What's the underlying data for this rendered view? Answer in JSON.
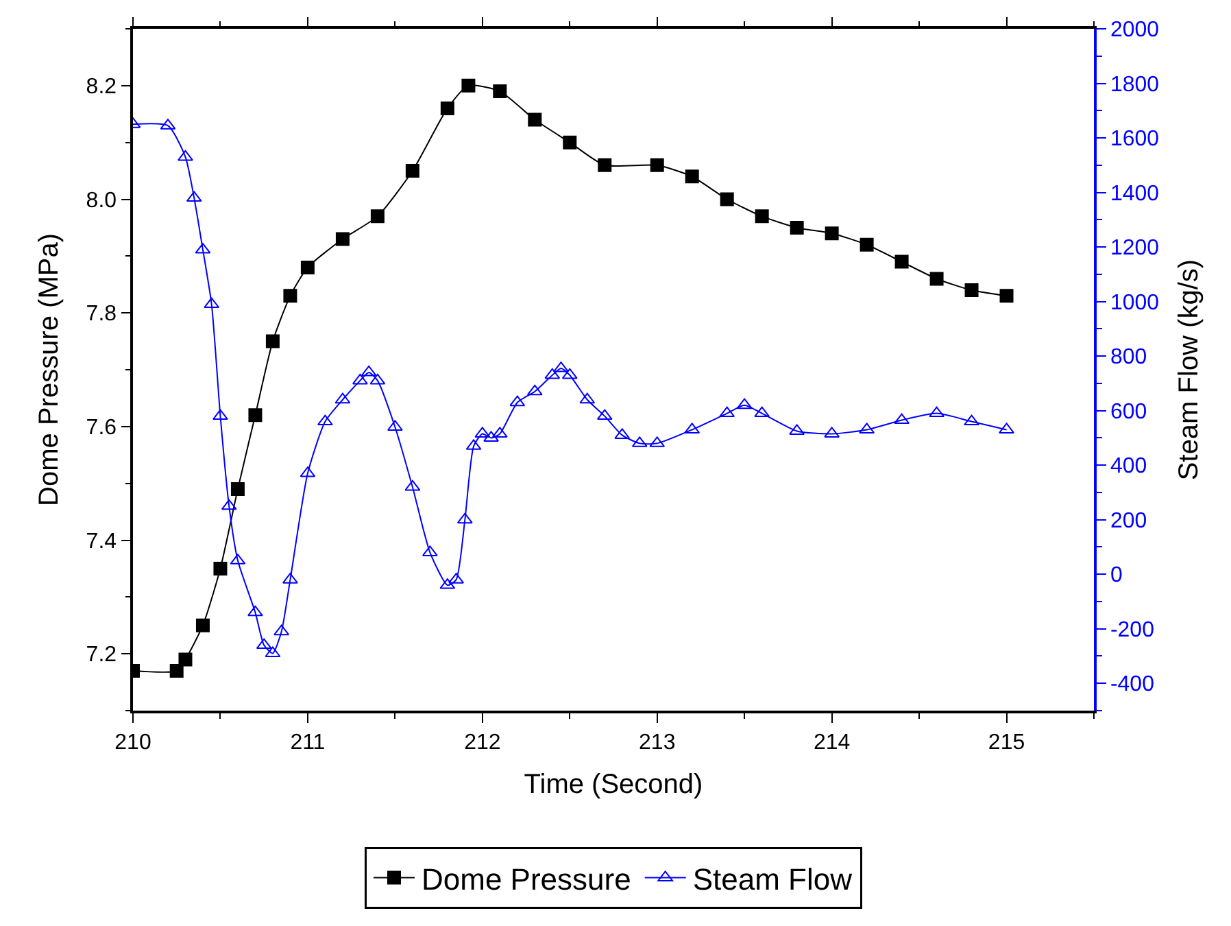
{
  "chart_data": {
    "type": "line",
    "xlabel": "Time (Second)",
    "ylabel": "Dome Pressure (MPa)",
    "y2label": "Steam Flow (kg/s)",
    "series": [
      {
        "name": "Dome Pressure",
        "color": "#000000",
        "marker": "square",
        "x": [
          210.0,
          210.25,
          210.3,
          210.4,
          210.5,
          210.6,
          210.7,
          210.8,
          210.9,
          211.0,
          211.2,
          211.4,
          211.6,
          211.8,
          211.92,
          212.1,
          212.3,
          212.5,
          212.7,
          213.0,
          213.2,
          213.4,
          213.6,
          213.8,
          214.0,
          214.2,
          214.4,
          214.6,
          214.8,
          215.0
        ],
        "values": [
          7.17,
          7.17,
          7.19,
          7.25,
          7.35,
          7.49,
          7.62,
          7.75,
          7.83,
          7.88,
          7.93,
          7.97,
          8.05,
          8.16,
          8.2,
          8.19,
          8.14,
          8.1,
          8.06,
          8.06,
          8.04,
          8.0,
          7.97,
          7.95,
          7.94,
          7.92,
          7.89,
          7.86,
          7.84,
          7.83
        ]
      },
      {
        "name": "Steam Flow",
        "color": "#0000ff",
        "marker": "triangle",
        "axis": "y2",
        "x": [
          210.0,
          210.2,
          210.3,
          210.35,
          210.4,
          210.45,
          210.5,
          210.55,
          210.6,
          210.7,
          210.75,
          210.8,
          210.85,
          210.9,
          211.0,
          211.1,
          211.2,
          211.3,
          211.35,
          211.4,
          211.5,
          211.6,
          211.7,
          211.8,
          211.85,
          211.9,
          211.95,
          212.0,
          212.05,
          212.1,
          212.2,
          212.3,
          212.4,
          212.45,
          212.5,
          212.6,
          212.7,
          212.8,
          212.9,
          213.0,
          213.2,
          213.4,
          213.5,
          213.6,
          213.8,
          214.0,
          214.2,
          214.4,
          214.6,
          214.8,
          215.0
        ],
        "values": [
          1650,
          1645,
          1530,
          1380,
          1190,
          990,
          580,
          250,
          50,
          -140,
          -260,
          -290,
          -210,
          -20,
          370,
          560,
          640,
          710,
          740,
          710,
          540,
          320,
          80,
          -40,
          -20,
          200,
          470,
          515,
          500,
          515,
          630,
          670,
          730,
          755,
          730,
          640,
          580,
          510,
          480,
          480,
          530,
          590,
          620,
          590,
          525,
          515,
          530,
          565,
          590,
          560,
          530
        ]
      }
    ],
    "xlim": [
      210,
      215.5
    ],
    "xticks": [
      210,
      211,
      212,
      213,
      214,
      215
    ],
    "ylim": [
      7.1,
      8.3
    ],
    "yticks": [
      {
        "value": 7.2,
        "label": "7.2"
      },
      {
        "value": 7.4,
        "label": "7.4"
      },
      {
        "value": 7.6,
        "label": "7.6"
      },
      {
        "value": 7.8,
        "label": "7.8"
      },
      {
        "value": 8.0,
        "label": "8.0"
      },
      {
        "value": 8.2,
        "label": "8.2"
      }
    ],
    "y2lim": [
      -500,
      2000
    ],
    "y2ticks": [
      -400,
      -200,
      0,
      200,
      400,
      600,
      800,
      1000,
      1200,
      1400,
      1600,
      1800,
      2000
    ],
    "legend": "bottom",
    "line_style": "solid"
  }
}
